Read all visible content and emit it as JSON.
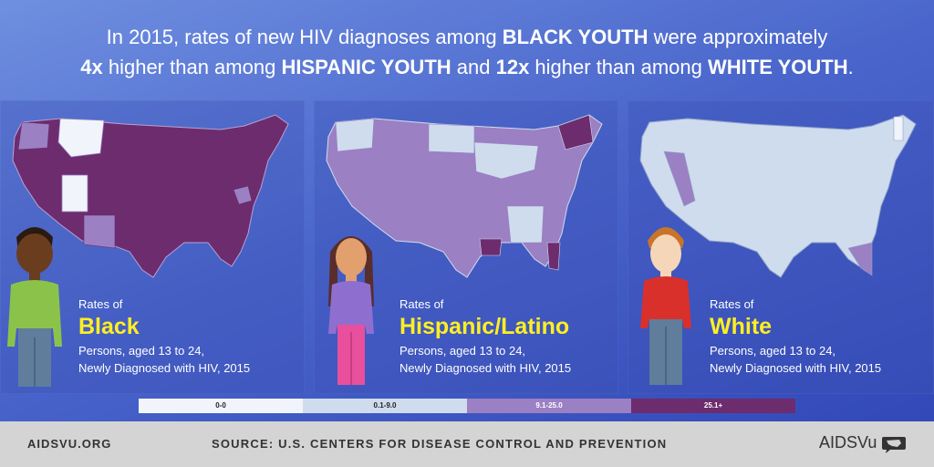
{
  "headline": {
    "line1_prefix": "In 2015, rates of new HIV diagnoses among ",
    "line1_bold": "BLACK YOUTH",
    "line1_suffix": " were approximately",
    "line2_bold1": "4x",
    "line2_text1": " higher than among ",
    "line2_bold2": "HISPANIC YOUTH",
    "line2_text2": " and ",
    "line2_bold3": "12x",
    "line2_text3": " higher than among ",
    "line2_bold4": "WHITE YOUTH",
    "line2_end": "."
  },
  "panels": [
    {
      "rates_of": "Rates of",
      "group": "Black",
      "desc1": "Persons, aged 13 to 24,",
      "desc2": "Newly Diagnosed with HIV, 2015"
    },
    {
      "rates_of": "Rates of",
      "group": "Hispanic/Latino",
      "desc1": "Persons, aged 13 to 24,",
      "desc2": "Newly Diagnosed with HIV, 2015"
    },
    {
      "rates_of": "Rates of",
      "group": "White",
      "desc1": "Persons, aged 13 to 24,",
      "desc2": "Newly Diagnosed with HIV, 2015"
    }
  ],
  "legend": [
    {
      "label": "0-0",
      "color": "#f1f4fa"
    },
    {
      "label": "0.1-9.0",
      "color": "#cfdced"
    },
    {
      "label": "9.1-25.0",
      "color": "#9b80c4"
    },
    {
      "label": "25.1+",
      "color": "#6c2c6e"
    }
  ],
  "footer": {
    "site": "AIDSVU.ORG",
    "source": "SOURCE: U.S. CENTERS FOR DISEASE CONTROL AND PREVENTION",
    "brand": "AIDSVu"
  }
}
